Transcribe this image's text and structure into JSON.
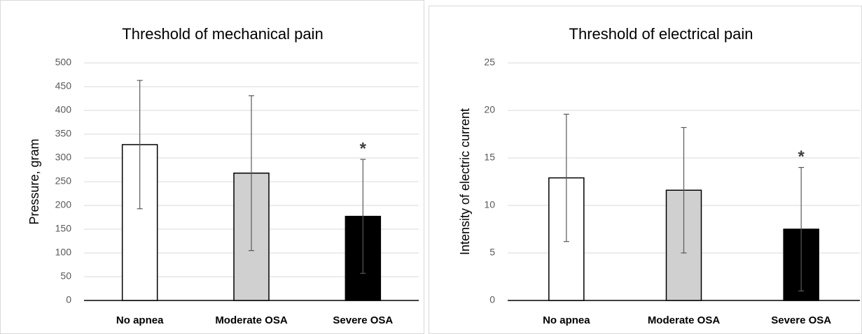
{
  "chart_data": [
    {
      "type": "bar",
      "title": "Threshold of mechanical pain",
      "y_label": "Pressure, gram",
      "categories": [
        "No apnea",
        "Moderate OSA",
        "Severe OSA"
      ],
      "values": [
        328,
        268,
        177
      ],
      "errors": [
        135,
        163,
        120
      ],
      "colors": [
        "#ffffff",
        "#d0d0d0",
        "#000000"
      ],
      "ylim": [
        0,
        500
      ],
      "yticks": [
        0,
        50,
        100,
        150,
        200,
        250,
        300,
        350,
        400,
        450,
        500
      ],
      "grid": true,
      "annotations": [
        {
          "text": "*",
          "category": "Severe OSA"
        }
      ]
    },
    {
      "type": "bar",
      "title": "Threshold of electrical pain",
      "y_label": "Intensity of electric current",
      "categories": [
        "No apnea",
        "Moderate OSA",
        "Severe OSA"
      ],
      "values": [
        12.9,
        11.6,
        7.5
      ],
      "errors": [
        6.7,
        6.6,
        6.5
      ],
      "colors": [
        "#ffffff",
        "#d0d0d0",
        "#000000"
      ],
      "ylim": [
        0,
        25
      ],
      "yticks": [
        0,
        5,
        10,
        15,
        20,
        25
      ],
      "grid": true,
      "annotations": [
        {
          "text": "*",
          "category": "Severe OSA"
        }
      ]
    }
  ]
}
